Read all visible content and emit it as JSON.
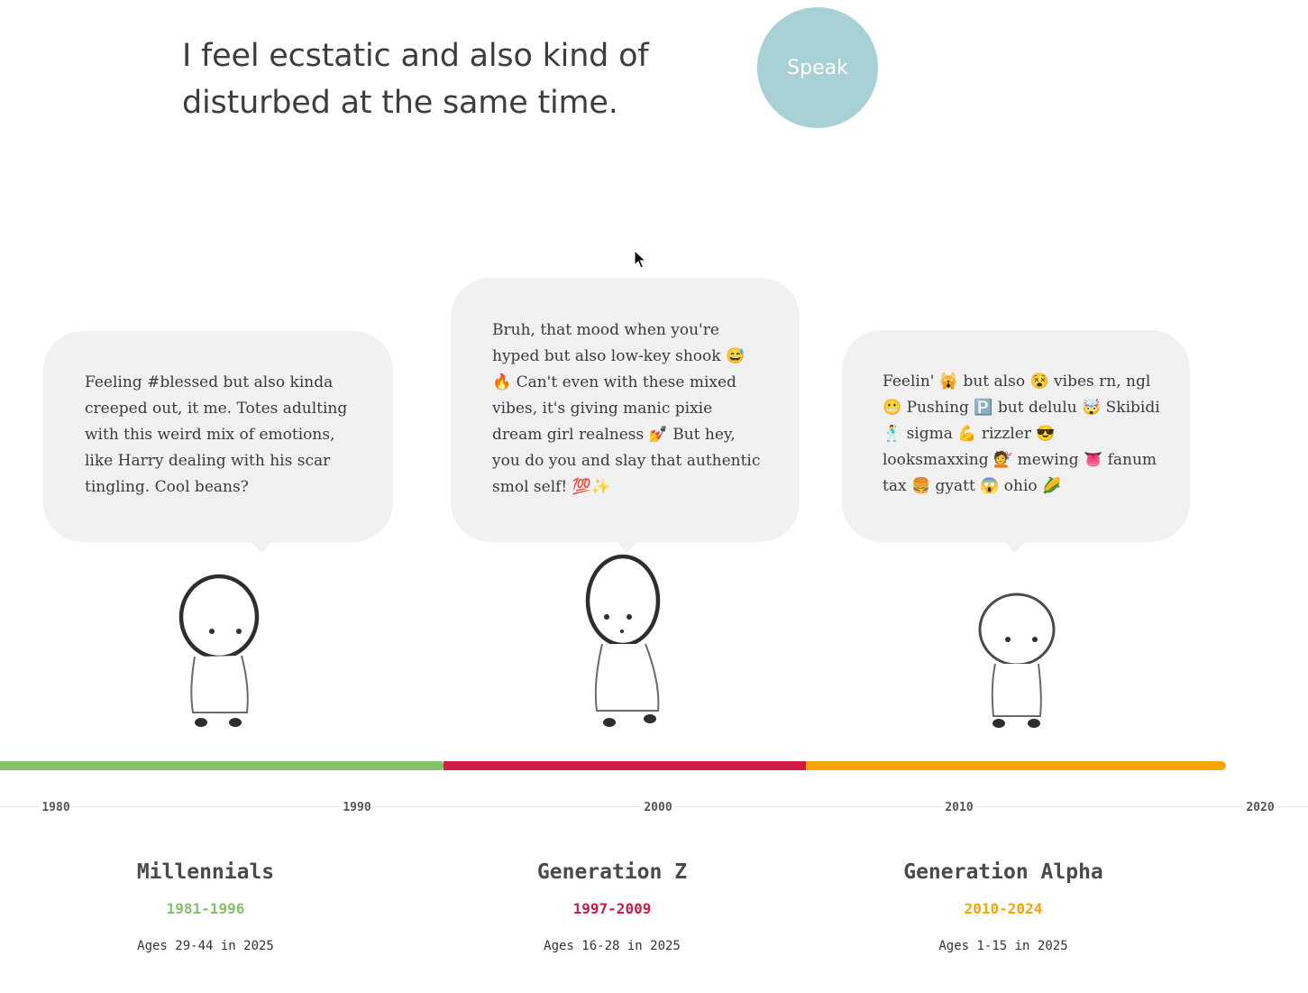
{
  "prompt": {
    "text": "I feel ecstatic and also kind of disturbed at the same time."
  },
  "speak_button": {
    "label": "Speak",
    "color": "#a8d1d6"
  },
  "responses": [
    {
      "text": "Feeling #blessed but also kinda creeped out, it me. Totes adulting with this weird mix of emotions, like Harry dealing with his scar tingling. Cool beans?"
    },
    {
      "text": "Bruh, that mood when you're hyped but also low-key shook 😅 🔥 Can't even with these mixed vibes, it's giving manic pixie dream girl realness 💅 But hey, you do you and slay that authentic smol self! 💯✨"
    },
    {
      "text": "Feelin' 🙀 but also 😵 vibes rn, ngl 😬 Pushing 🅿️ but delulu 🤯 Skibidi 🕺 sigma 💪 rizzler 😎 looksmaxxing 💇 mewing 👅 fanum tax 🍔 gyatt 😱 ohio 🌽"
    }
  ],
  "timeline": {
    "ticks": [
      "1980",
      "1990",
      "2000",
      "2010",
      "2020"
    ]
  },
  "generations": [
    {
      "name": "Millennials",
      "years": "1981-1996",
      "ages": "Ages 29-44 in 2025",
      "color": "#86c06a"
    },
    {
      "name": "Generation Z",
      "years": "1997-2009",
      "ages": "Ages 16-28 in 2025",
      "color": "#d11a45"
    },
    {
      "name": "Generation Alpha",
      "years": "2010-2024",
      "ages": "Ages 1-15 in 2025",
      "color": "#f7a400"
    }
  ],
  "icons": {
    "cursor": "mouse-pointer-icon",
    "figures": [
      "stick-figure-icon",
      "stick-figure-icon",
      "stick-figure-icon"
    ]
  }
}
